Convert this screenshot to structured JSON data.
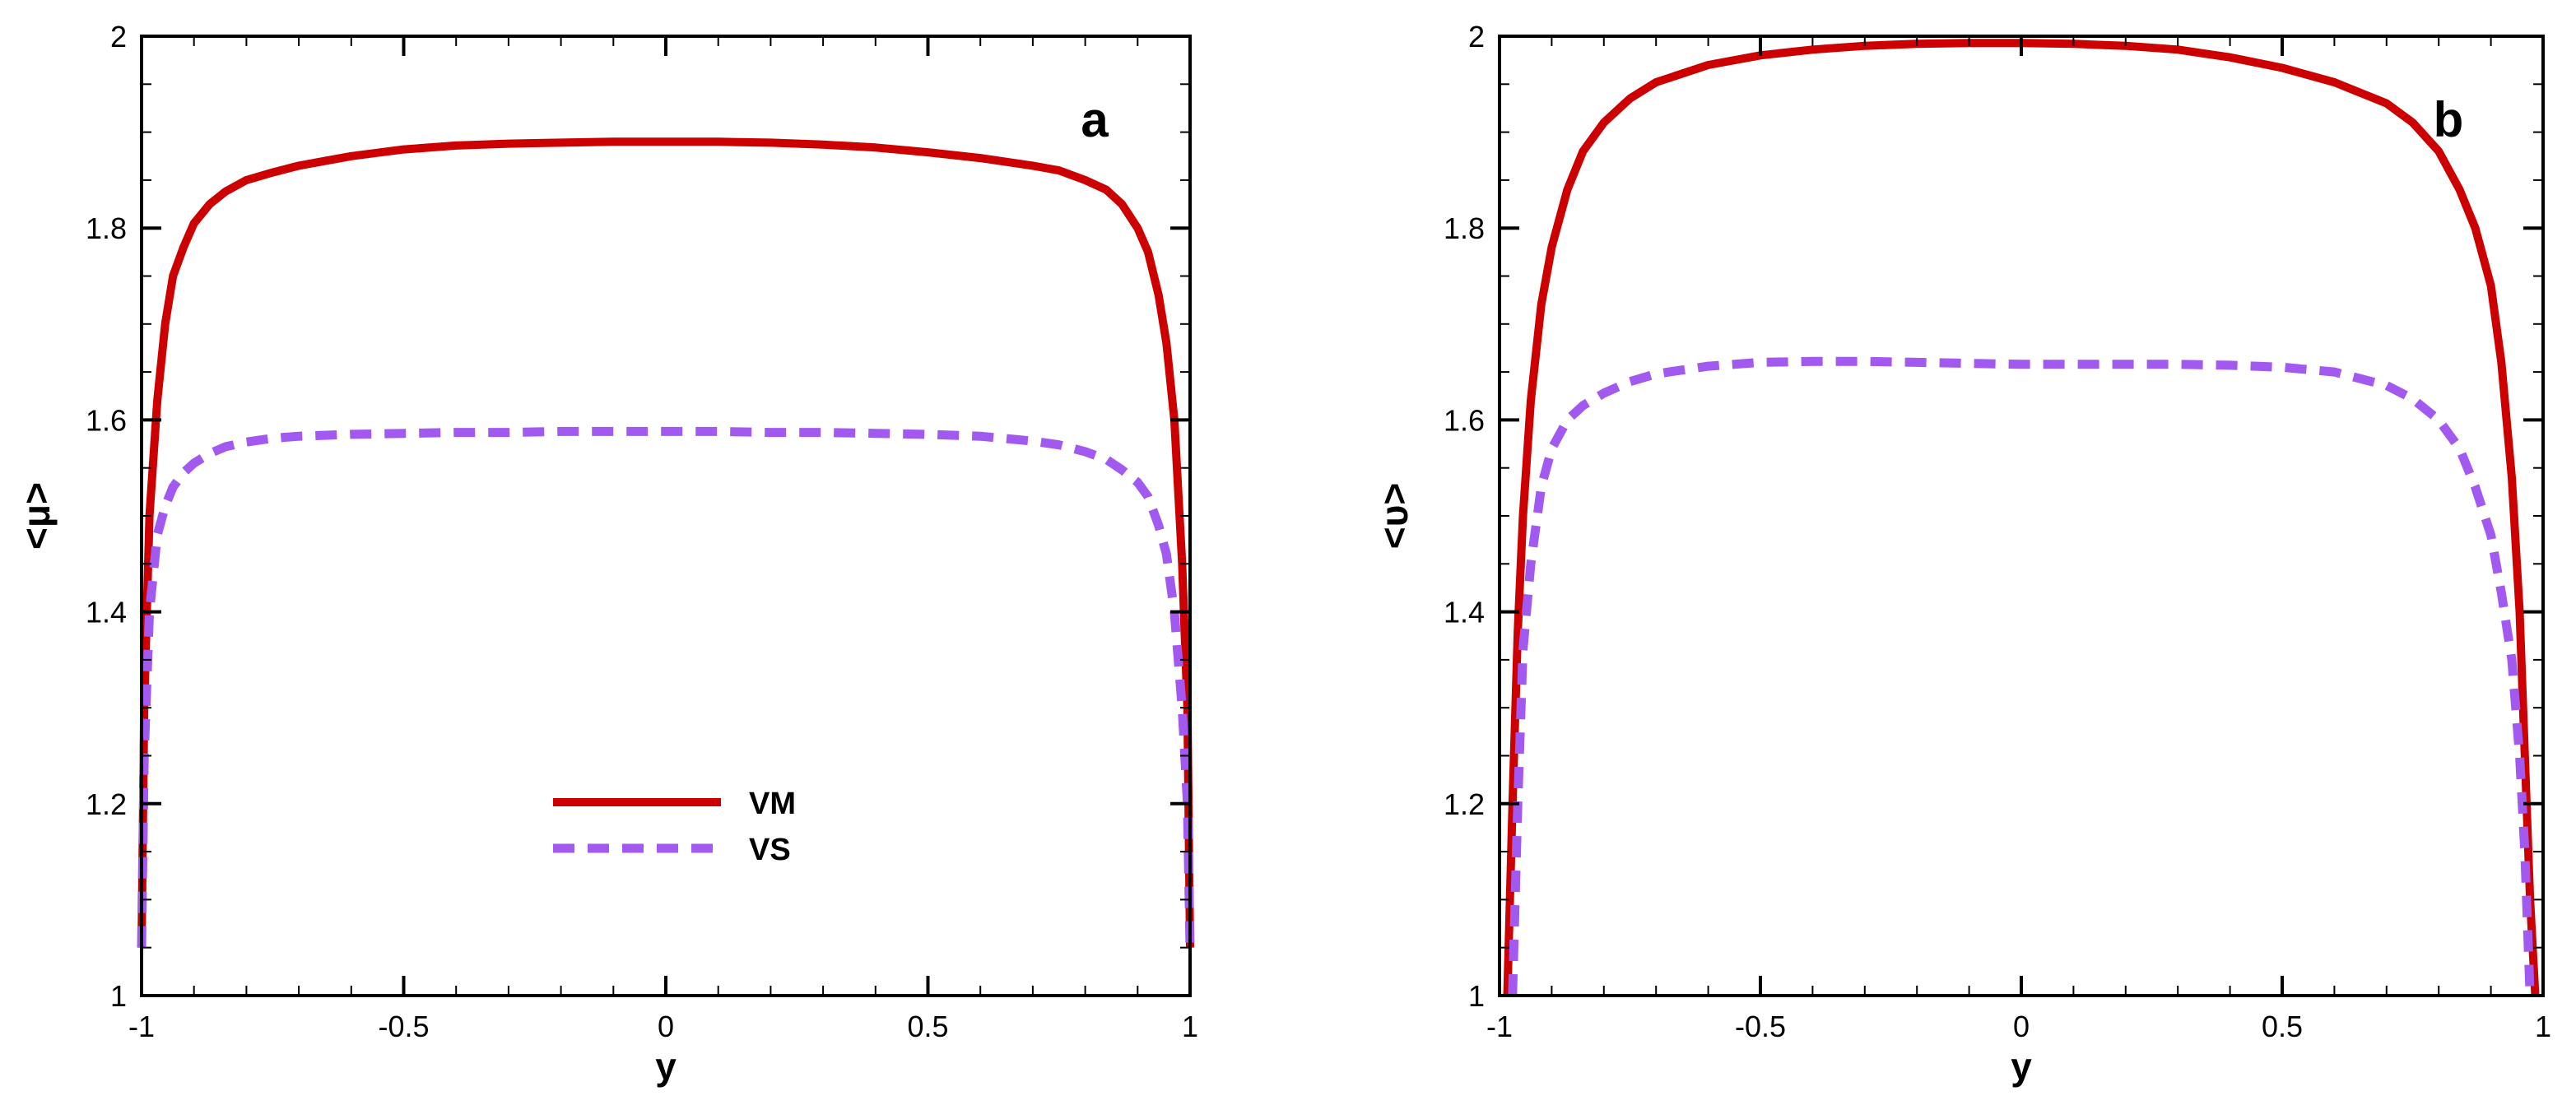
{
  "chart_data": [
    {
      "type": "line",
      "panel_label": "a",
      "xlabel": "y",
      "ylabel": "<μ>",
      "xlim": [
        -1,
        1
      ],
      "ylim": [
        1,
        2
      ],
      "xticks": [
        -1,
        -0.5,
        0,
        0.5,
        1
      ],
      "xtick_labels": [
        "-1",
        "-0.5",
        "0",
        "0.5",
        "1"
      ],
      "yticks": [
        1,
        1.2,
        1.4,
        1.6,
        1.8,
        2
      ],
      "ytick_labels": [
        "1",
        "1.2",
        "1.4",
        "1.6",
        "1.8",
        "2"
      ],
      "grid": false,
      "legend": {
        "placement": "lower-center",
        "entries": [
          "VM",
          "VS"
        ]
      },
      "series": [
        {
          "name": "VM",
          "style": "solid",
          "color": "#cc0000",
          "x": [
            -1.0,
            -0.995,
            -0.985,
            -0.97,
            -0.955,
            -0.94,
            -0.92,
            -0.9,
            -0.87,
            -0.84,
            -0.8,
            -0.75,
            -0.7,
            -0.6,
            -0.5,
            -0.4,
            -0.3,
            -0.2,
            -0.1,
            0.0,
            0.1,
            0.2,
            0.3,
            0.4,
            0.5,
            0.6,
            0.7,
            0.75,
            0.8,
            0.84,
            0.87,
            0.9,
            0.92,
            0.94,
            0.955,
            0.97,
            0.985,
            0.995,
            1.0
          ],
          "y": [
            1.05,
            1.3,
            1.5,
            1.62,
            1.7,
            1.75,
            1.78,
            1.805,
            1.825,
            1.838,
            1.85,
            1.858,
            1.865,
            1.875,
            1.882,
            1.886,
            1.888,
            1.889,
            1.89,
            1.89,
            1.89,
            1.889,
            1.887,
            1.884,
            1.879,
            1.873,
            1.865,
            1.86,
            1.85,
            1.84,
            1.825,
            1.8,
            1.775,
            1.73,
            1.68,
            1.6,
            1.45,
            1.3,
            1.05
          ]
        },
        {
          "name": "VS",
          "style": "dashed",
          "color": "#a259f0",
          "x": [
            -1.0,
            -0.995,
            -0.985,
            -0.97,
            -0.955,
            -0.94,
            -0.92,
            -0.9,
            -0.87,
            -0.84,
            -0.8,
            -0.75,
            -0.7,
            -0.6,
            -0.5,
            -0.4,
            -0.3,
            -0.2,
            -0.1,
            0.0,
            0.1,
            0.2,
            0.3,
            0.4,
            0.5,
            0.6,
            0.7,
            0.75,
            0.8,
            0.84,
            0.87,
            0.9,
            0.92,
            0.94,
            0.955,
            0.97,
            0.985,
            0.995,
            1.0
          ],
          "y": [
            1.05,
            1.25,
            1.4,
            1.48,
            1.51,
            1.53,
            1.545,
            1.555,
            1.565,
            1.572,
            1.577,
            1.581,
            1.583,
            1.585,
            1.586,
            1.587,
            1.587,
            1.588,
            1.588,
            1.588,
            1.588,
            1.587,
            1.587,
            1.586,
            1.585,
            1.583,
            1.578,
            1.574,
            1.567,
            1.559,
            1.548,
            1.535,
            1.52,
            1.49,
            1.46,
            1.4,
            1.3,
            1.2,
            1.05
          ]
        }
      ]
    },
    {
      "type": "line",
      "panel_label": "b",
      "xlabel": "y",
      "ylabel": "<υ>",
      "xlim": [
        -1,
        1
      ],
      "ylim": [
        1,
        2
      ],
      "xticks": [
        -1,
        -0.5,
        0,
        0.5,
        1
      ],
      "xtick_labels": [
        "-1",
        "-0.5",
        "0",
        "0.5",
        "1"
      ],
      "yticks": [
        1,
        1.2,
        1.4,
        1.6,
        1.8,
        2
      ],
      "ytick_labels": [
        "1",
        "1.2",
        "1.4",
        "1.6",
        "1.8",
        "2"
      ],
      "grid": false,
      "legend": null,
      "series": [
        {
          "name": "VM",
          "style": "solid",
          "color": "#cc0000",
          "x": [
            -0.985,
            -0.975,
            -0.965,
            -0.955,
            -0.94,
            -0.92,
            -0.9,
            -0.87,
            -0.84,
            -0.8,
            -0.75,
            -0.7,
            -0.6,
            -0.5,
            -0.4,
            -0.3,
            -0.2,
            -0.1,
            0.0,
            0.1,
            0.2,
            0.3,
            0.4,
            0.5,
            0.6,
            0.7,
            0.75,
            0.8,
            0.84,
            0.87,
            0.9,
            0.92,
            0.94,
            0.955,
            0.965,
            0.975,
            0.985
          ],
          "y": [
            1.0,
            1.2,
            1.38,
            1.5,
            1.62,
            1.72,
            1.78,
            1.84,
            1.88,
            1.91,
            1.935,
            1.952,
            1.97,
            1.98,
            1.986,
            1.99,
            1.992,
            1.993,
            1.993,
            1.992,
            1.99,
            1.986,
            1.978,
            1.967,
            1.952,
            1.93,
            1.91,
            1.88,
            1.84,
            1.8,
            1.74,
            1.66,
            1.54,
            1.4,
            1.25,
            1.1,
            1.0
          ]
        },
        {
          "name": "VS",
          "style": "dashed",
          "color": "#a259f0",
          "x": [
            -0.975,
            -0.965,
            -0.955,
            -0.94,
            -0.92,
            -0.9,
            -0.87,
            -0.84,
            -0.8,
            -0.75,
            -0.7,
            -0.6,
            -0.5,
            -0.4,
            -0.3,
            -0.2,
            -0.1,
            0.0,
            0.1,
            0.2,
            0.3,
            0.4,
            0.5,
            0.6,
            0.7,
            0.75,
            0.8,
            0.84,
            0.87,
            0.9,
            0.92,
            0.94,
            0.955,
            0.965,
            0.975
          ],
          "y": [
            1.0,
            1.2,
            1.36,
            1.45,
            1.53,
            1.57,
            1.6,
            1.615,
            1.628,
            1.64,
            1.648,
            1.656,
            1.66,
            1.661,
            1.661,
            1.66,
            1.659,
            1.658,
            1.658,
            1.658,
            1.658,
            1.657,
            1.655,
            1.65,
            1.636,
            1.622,
            1.6,
            1.57,
            1.53,
            1.48,
            1.42,
            1.35,
            1.25,
            1.15,
            1.0
          ]
        }
      ]
    }
  ]
}
